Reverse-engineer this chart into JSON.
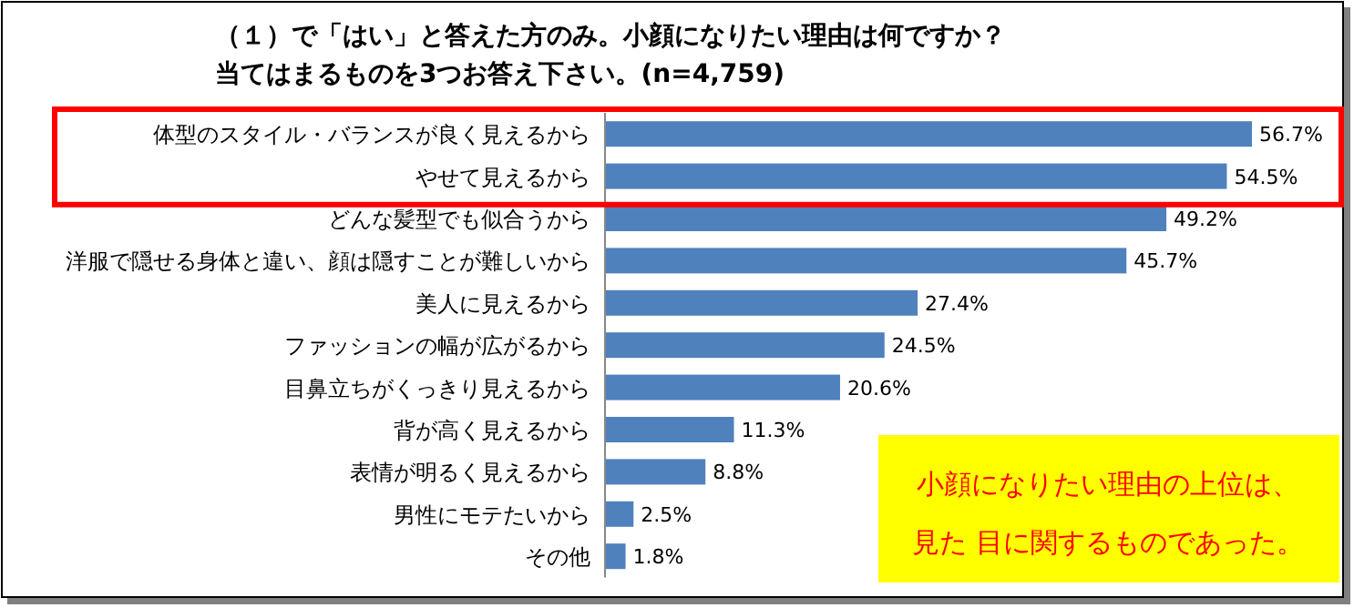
{
  "chart_data": {
    "type": "bar",
    "orientation": "horizontal",
    "title": "（１）で「はい」と答えた方のみ。小顔になりたい理由は何ですか？",
    "subtitle": "当てはまるものを3つお答え下さい。(n=4,759)",
    "categories": [
      "体型のスタイル・バランスが良く見えるから",
      "やせて見えるから",
      "どんな髪型でも似合うから",
      "洋服で隠せる身体と違い、顔は隠すことが難しいから",
      "美人に見えるから",
      "ファッションの幅が広がるから",
      "目鼻立ちがくっきり見えるから",
      "背が高く見えるから",
      "表情が明るく見えるから",
      "男性にモテたいから",
      "その他"
    ],
    "values": [
      56.7,
      54.5,
      49.2,
      45.7,
      27.4,
      24.5,
      20.6,
      11.3,
      8.8,
      2.5,
      1.8
    ],
    "value_labels": [
      "56.7%",
      "54.5%",
      "49.2%",
      "45.7%",
      "27.4%",
      "24.5%",
      "20.6%",
      "11.3%",
      "8.8%",
      "2.5%",
      "1.8%"
    ],
    "color": "#4f81bd",
    "annotations": [
      "小顔になりたい理由の上位は、",
      "見た 目に関するものであった。"
    ]
  }
}
